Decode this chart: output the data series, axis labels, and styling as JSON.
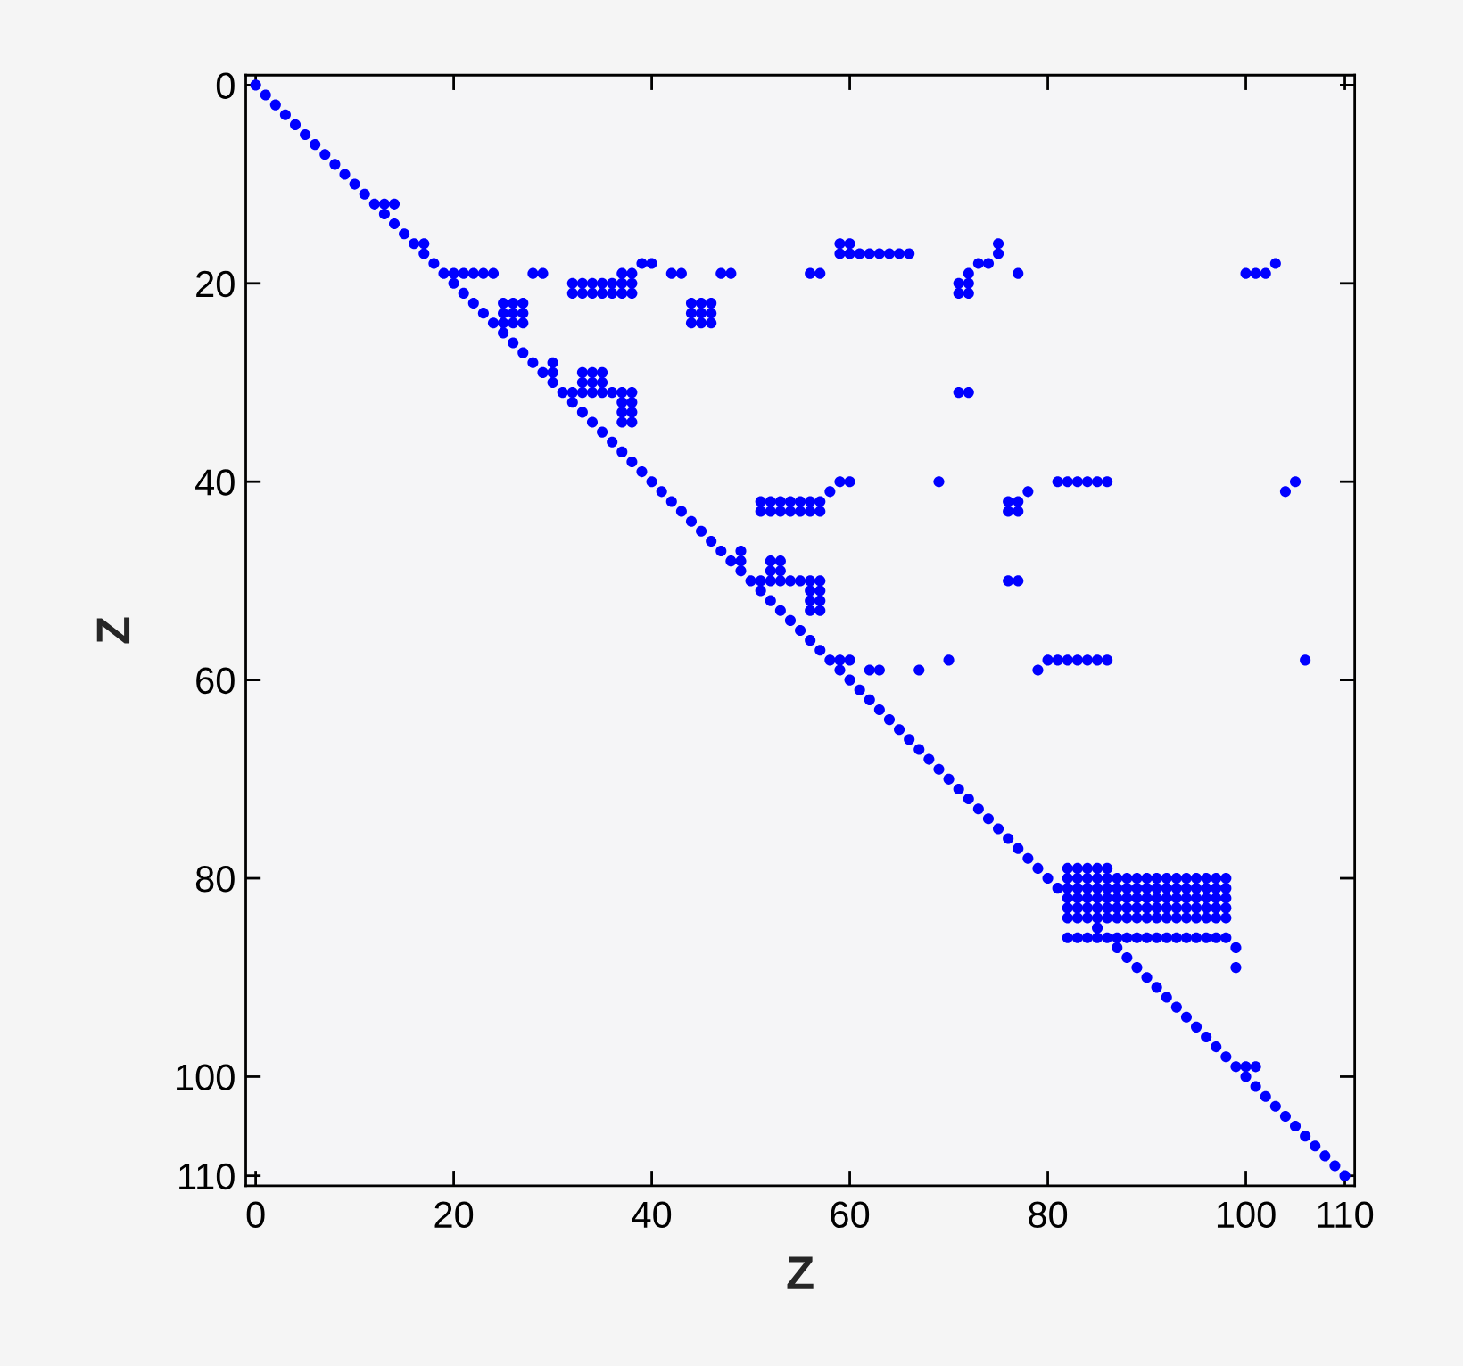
{
  "chart_data": {
    "type": "scatter",
    "xlabel": "Z",
    "ylabel": "Z",
    "marker": "circle",
    "xlim": [
      -1,
      111
    ],
    "ylim": [
      111,
      -1
    ],
    "xticks": [
      0,
      20,
      40,
      60,
      80,
      100,
      110
    ],
    "yticks": [
      0,
      20,
      40,
      60,
      80,
      100,
      110
    ],
    "series": [
      {
        "color": "#0000ff",
        "x": [
          0,
          1,
          2,
          3,
          4,
          5,
          6,
          7,
          8,
          9,
          10,
          11,
          12,
          13,
          14,
          13,
          14,
          15,
          16,
          17,
          59,
          60,
          75,
          17,
          59,
          60,
          61,
          62,
          63,
          64,
          65,
          66,
          75,
          18,
          39,
          40,
          73,
          74,
          103,
          19,
          20,
          21,
          22,
          23,
          24,
          28,
          29,
          37,
          38,
          42,
          43,
          47,
          48,
          56,
          57,
          72,
          77,
          100,
          101,
          102,
          20,
          32,
          33,
          34,
          35,
          36,
          37,
          38,
          71,
          72,
          21,
          32,
          33,
          34,
          35,
          36,
          37,
          38,
          71,
          72,
          22,
          25,
          26,
          27,
          44,
          45,
          46,
          23,
          25,
          26,
          27,
          44,
          45,
          46,
          24,
          25,
          26,
          27,
          44,
          45,
          46,
          25,
          26,
          27,
          28,
          30,
          29,
          30,
          33,
          34,
          35,
          30,
          33,
          34,
          35,
          31,
          32,
          33,
          34,
          35,
          36,
          37,
          38,
          71,
          72,
          32,
          37,
          38,
          33,
          37,
          38,
          34,
          37,
          38,
          35,
          36,
          37,
          38,
          39,
          40,
          59,
          60,
          69,
          81,
          82,
          83,
          84,
          85,
          86,
          105,
          41,
          58,
          78,
          104,
          42,
          51,
          52,
          53,
          54,
          55,
          56,
          57,
          76,
          77,
          43,
          51,
          52,
          53,
          54,
          55,
          56,
          57,
          76,
          77,
          44,
          45,
          46,
          47,
          49,
          48,
          49,
          52,
          53,
          49,
          52,
          53,
          50,
          51,
          52,
          53,
          54,
          55,
          56,
          57,
          76,
          77,
          51,
          56,
          57,
          52,
          56,
          57,
          53,
          56,
          57,
          54,
          55,
          56,
          57,
          58,
          59,
          60,
          70,
          80,
          81,
          82,
          83,
          84,
          85,
          86,
          106,
          59,
          62,
          63,
          67,
          79,
          60,
          61,
          62,
          63,
          64,
          65,
          66,
          67,
          68,
          69,
          70,
          71,
          72,
          73,
          74,
          75,
          76,
          77,
          78,
          79,
          82,
          83,
          84,
          85,
          86,
          80,
          82,
          83,
          84,
          85,
          86,
          87,
          88,
          89,
          90,
          91,
          92,
          93,
          94,
          95,
          96,
          97,
          98,
          81,
          82,
          83,
          84,
          85,
          86,
          87,
          88,
          89,
          90,
          91,
          92,
          93,
          94,
          95,
          96,
          97,
          98,
          82,
          83,
          84,
          85,
          86,
          87,
          88,
          89,
          90,
          91,
          92,
          93,
          94,
          95,
          96,
          97,
          98,
          82,
          83,
          84,
          85,
          86,
          87,
          88,
          89,
          90,
          91,
          92,
          93,
          94,
          95,
          96,
          97,
          98,
          82,
          83,
          84,
          85,
          86,
          87,
          88,
          89,
          90,
          91,
          92,
          93,
          94,
          95,
          96,
          97,
          98,
          85,
          82,
          83,
          84,
          85,
          86,
          87,
          88,
          89,
          90,
          91,
          92,
          93,
          94,
          95,
          96,
          97,
          98,
          87,
          99,
          88,
          89,
          99,
          90,
          91,
          92,
          93,
          94,
          95,
          96,
          97,
          98,
          99,
          100,
          101,
          100,
          101,
          102,
          103,
          104,
          105,
          106,
          107,
          108,
          109,
          110
        ],
        "values": [
          0,
          1,
          2,
          3,
          4,
          5,
          6,
          7,
          8,
          9,
          10,
          11,
          12,
          12,
          12,
          13,
          14,
          15,
          16,
          16,
          16,
          16,
          16,
          17,
          17,
          17,
          17,
          17,
          17,
          17,
          17,
          17,
          17,
          18,
          18,
          18,
          18,
          18,
          18,
          19,
          19,
          19,
          19,
          19,
          19,
          19,
          19,
          19,
          19,
          19,
          19,
          19,
          19,
          19,
          19,
          19,
          19,
          19,
          19,
          19,
          20,
          20,
          20,
          20,
          20,
          20,
          20,
          20,
          20,
          20,
          21,
          21,
          21,
          21,
          21,
          21,
          21,
          21,
          21,
          21,
          22,
          22,
          22,
          22,
          22,
          22,
          22,
          23,
          23,
          23,
          23,
          23,
          23,
          23,
          24,
          24,
          24,
          24,
          24,
          24,
          24,
          25,
          26,
          27,
          28,
          28,
          29,
          29,
          29,
          29,
          29,
          30,
          30,
          30,
          30,
          31,
          31,
          31,
          31,
          31,
          31,
          31,
          31,
          31,
          31,
          32,
          32,
          32,
          33,
          33,
          33,
          34,
          34,
          34,
          35,
          36,
          37,
          38,
          39,
          40,
          40,
          40,
          40,
          40,
          40,
          40,
          40,
          40,
          40,
          40,
          41,
          41,
          41,
          41,
          42,
          42,
          42,
          42,
          42,
          42,
          42,
          42,
          42,
          42,
          43,
          43,
          43,
          43,
          43,
          43,
          43,
          43,
          43,
          43,
          44,
          45,
          46,
          47,
          47,
          48,
          48,
          48,
          48,
          49,
          49,
          49,
          50,
          50,
          50,
          50,
          50,
          50,
          50,
          50,
          50,
          50,
          51,
          51,
          51,
          52,
          52,
          52,
          53,
          53,
          53,
          54,
          55,
          56,
          57,
          58,
          58,
          58,
          58,
          58,
          58,
          58,
          58,
          58,
          58,
          58,
          58,
          59,
          59,
          59,
          59,
          59,
          60,
          61,
          62,
          63,
          64,
          65,
          66,
          67,
          68,
          69,
          70,
          71,
          72,
          73,
          74,
          75,
          76,
          77,
          78,
          79,
          79,
          79,
          79,
          79,
          79,
          80,
          80,
          80,
          80,
          80,
          80,
          80,
          80,
          80,
          80,
          80,
          80,
          80,
          80,
          80,
          80,
          80,
          80,
          81,
          81,
          81,
          81,
          81,
          81,
          81,
          81,
          81,
          81,
          81,
          81,
          81,
          81,
          81,
          81,
          81,
          81,
          82,
          82,
          82,
          82,
          82,
          82,
          82,
          82,
          82,
          82,
          82,
          82,
          82,
          82,
          82,
          82,
          82,
          83,
          83,
          83,
          83,
          83,
          83,
          83,
          83,
          83,
          83,
          83,
          83,
          83,
          83,
          83,
          83,
          83,
          84,
          84,
          84,
          84,
          84,
          84,
          84,
          84,
          84,
          84,
          84,
          84,
          84,
          84,
          84,
          84,
          84,
          85,
          86,
          86,
          86,
          86,
          86,
          86,
          86,
          86,
          86,
          86,
          86,
          86,
          86,
          86,
          86,
          86,
          86,
          87,
          87,
          88,
          89,
          89,
          90,
          91,
          92,
          93,
          94,
          95,
          96,
          97,
          98,
          99,
          99,
          99,
          100,
          101,
          102,
          103,
          104,
          105,
          106,
          107,
          108,
          109,
          110
        ]
      }
    ]
  }
}
